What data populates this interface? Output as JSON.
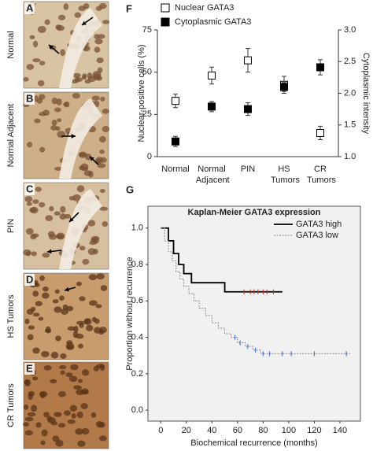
{
  "panels": [
    {
      "letter": "A",
      "label": "Normal"
    },
    {
      "letter": "B",
      "label": "Normal Adjacent"
    },
    {
      "letter": "C",
      "label": "PIN"
    },
    {
      "letter": "D",
      "label": "HS Tumors"
    },
    {
      "letter": "E",
      "label": "CR Tumors"
    }
  ],
  "chart_data": [
    {
      "type": "errorbar",
      "letter": "F",
      "ylabel": "Nuclear-positive cells (%)",
      "y2label": "Cytoplasmic intensity",
      "categories": [
        "Normal",
        "Normal Adjacent",
        "PIN",
        "HS Tumors",
        "CR Tumors"
      ],
      "ylim": [
        0,
        75
      ],
      "yticks": [
        0,
        25,
        50,
        75
      ],
      "y2lim": [
        1,
        3
      ],
      "y2ticks": [
        {
          "value": 1,
          "label": "1.0"
        },
        1.5,
        {
          "value": 2,
          "label": "2.0"
        },
        2.5,
        {
          "value": 3,
          "label": "3.0"
        }
      ],
      "legend": "top-left",
      "series": [
        {
          "name": "Nuclear GATA3",
          "color": "#ffffff",
          "values": [
            33,
            48,
            57,
            42.5,
            14
          ],
          "errors": [
            4,
            5,
            7,
            5,
            4
          ]
        },
        {
          "name": "Cytoplasmic GATA3",
          "color": "#000000",
          "axis": "y2",
          "values": [
            1.24,
            1.79,
            1.75,
            2.1,
            2.41
          ],
          "errors": [
            0.08,
            0.08,
            0.1,
            0.07,
            0.12
          ]
        }
      ]
    },
    {
      "type": "step",
      "letter": "G",
      "title": "Kaplan-Meier GATA3 expression",
      "xlabel": "Biochemical recurrence (months)",
      "ylabel": "Proportion without recurrence",
      "xlim": [
        -10,
        156
      ],
      "xticks": [
        0,
        20,
        40,
        60,
        80,
        100,
        120,
        140
      ],
      "ylim": [
        -0.06,
        1.12
      ],
      "yticks": [
        {
          "value": 0,
          "label": "0.0"
        },
        0.2,
        0.4,
        0.6,
        0.8,
        {
          "value": 1,
          "label": "1.0"
        }
      ],
      "legend": "top-right",
      "series": [
        {
          "name": "GATA3 high",
          "color": "#000000",
          "x": [
            0,
            6,
            6,
            10,
            10,
            14,
            14,
            18,
            18,
            24,
            24,
            50,
            50,
            95
          ],
          "y": [
            1,
            1,
            0.93,
            0.93,
            0.86,
            0.86,
            0.8,
            0.8,
            0.75,
            0.75,
            0.7,
            0.7,
            0.65,
            0.65
          ],
          "censor_color": "#d03030",
          "censored_x": [
            65,
            70,
            73,
            76,
            80,
            83,
            88
          ],
          "censored_y": [
            0.65,
            0.65,
            0.65,
            0.65,
            0.65,
            0.65,
            0.65
          ]
        },
        {
          "name": "GATA3 low",
          "color": "#888888",
          "x": [
            0,
            3,
            3,
            6,
            6,
            9,
            9,
            12,
            12,
            15,
            15,
            18,
            18,
            22,
            22,
            26,
            26,
            30,
            30,
            35,
            35,
            40,
            40,
            45,
            45,
            50,
            50,
            55,
            55,
            60,
            60,
            66,
            66,
            72,
            72,
            78,
            78,
            148
          ],
          "y": [
            1,
            1,
            0.93,
            0.93,
            0.87,
            0.87,
            0.82,
            0.82,
            0.76,
            0.76,
            0.72,
            0.72,
            0.68,
            0.68,
            0.64,
            0.64,
            0.6,
            0.6,
            0.56,
            0.56,
            0.52,
            0.52,
            0.48,
            0.48,
            0.45,
            0.45,
            0.42,
            0.42,
            0.4,
            0.4,
            0.37,
            0.37,
            0.35,
            0.35,
            0.33,
            0.33,
            0.31,
            0.31
          ],
          "censor_color": "#4a6fd0",
          "censored_x": [
            58,
            62,
            68,
            74,
            80,
            85,
            95,
            102,
            120,
            145
          ],
          "censored_y": [
            0.4,
            0.37,
            0.35,
            0.33,
            0.31,
            0.31,
            0.31,
            0.31,
            0.31,
            0.31
          ]
        }
      ]
    }
  ]
}
